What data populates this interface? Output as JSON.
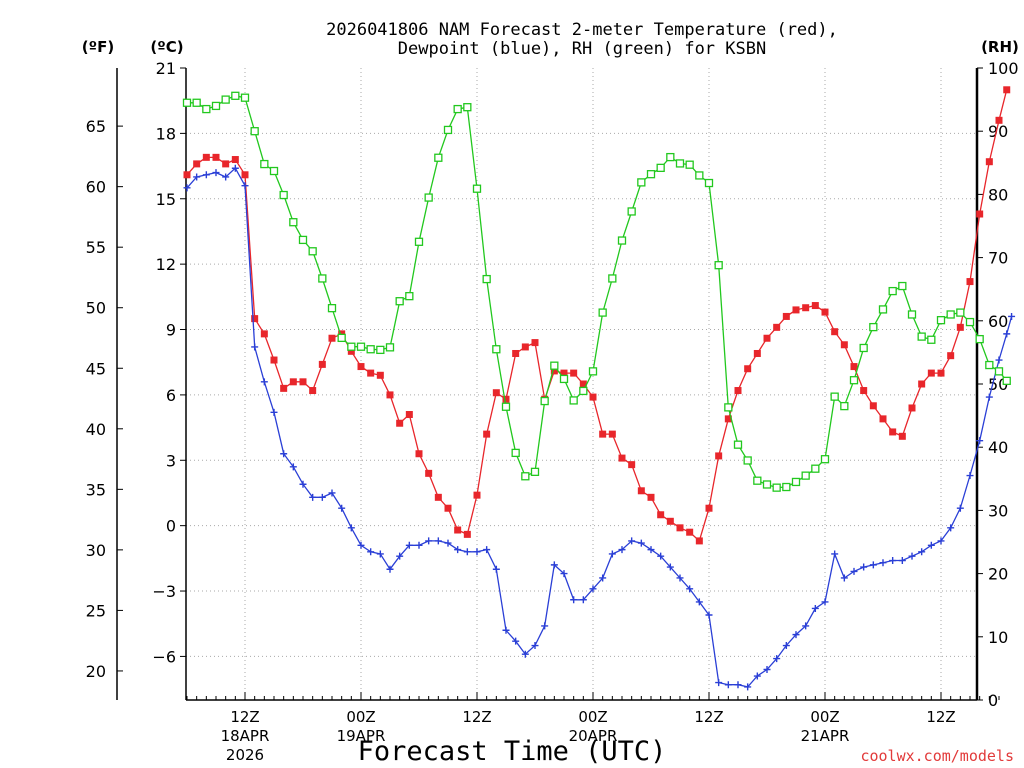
{
  "chart_data": {
    "type": "line",
    "title_line1": "2026041806 NAM Forecast 2-meter Temperature (red),",
    "title_line2": "Dewpoint (blue), RH (green) for KSBN",
    "xlabel": "Forecast Time (UTC)",
    "credit": "coolwx.com/models",
    "unit_f": "(ºF)",
    "unit_c": "(ºC)",
    "unit_rh": "(RH)",
    "ylim_c": [
      -8,
      21
    ],
    "ylim_rh": [
      0,
      100
    ],
    "grid": true,
    "x_range_hours": [
      6,
      90
    ],
    "c_ticks": [
      "21",
      "18",
      "15",
      "12",
      "9",
      "6",
      "3",
      "0",
      "−3",
      "−6"
    ],
    "c_tick_values": [
      21,
      18,
      15,
      12,
      9,
      6,
      3,
      0,
      -3,
      -6
    ],
    "f_ticks": [
      "65",
      "60",
      "55",
      "50",
      "45",
      "40",
      "35",
      "30",
      "25",
      "20"
    ],
    "f_tick_values": [
      65,
      60,
      55,
      50,
      45,
      40,
      35,
      30,
      25,
      20
    ],
    "rh_ticks": [
      "100",
      "90",
      "80",
      "70",
      "60",
      "50",
      "40",
      "30",
      "20",
      "10",
      "0"
    ],
    "rh_tick_values": [
      100,
      90,
      80,
      70,
      60,
      50,
      40,
      30,
      20,
      10,
      0
    ],
    "x_ticks": [
      {
        "hour": 12,
        "label": "12Z",
        "date": "18APR",
        "year": "2026"
      },
      {
        "hour": 24,
        "label": "00Z",
        "date": "19APR"
      },
      {
        "hour": 36,
        "label": "12Z"
      },
      {
        "hour": 48,
        "label": "00Z",
        "date": "20APR"
      },
      {
        "hour": 60,
        "label": "12Z"
      },
      {
        "hour": 72,
        "label": "00Z",
        "date": "21APR"
      },
      {
        "hour": 84,
        "label": "12Z"
      }
    ],
    "series": [
      {
        "name": "Temperature",
        "unit": "°C",
        "color": "#e8262b",
        "marker": "filled-square",
        "points": [
          [
            6,
            16.1
          ],
          [
            7,
            16.6
          ],
          [
            8,
            16.9
          ],
          [
            9,
            16.9
          ],
          [
            10,
            16.6
          ],
          [
            11,
            16.8
          ],
          [
            12,
            16.1
          ],
          [
            13,
            9.5
          ],
          [
            14,
            8.8
          ],
          [
            15,
            7.6
          ],
          [
            16,
            6.3
          ],
          [
            17,
            6.6
          ],
          [
            18,
            6.6
          ],
          [
            19,
            6.2
          ],
          [
            20,
            7.4
          ],
          [
            21,
            8.6
          ],
          [
            22,
            8.8
          ],
          [
            23,
            8.0
          ],
          [
            24,
            7.3
          ],
          [
            25,
            7.0
          ],
          [
            26,
            6.9
          ],
          [
            27,
            6.0
          ],
          [
            28,
            4.7
          ],
          [
            29,
            5.1
          ],
          [
            30,
            3.3
          ],
          [
            31,
            2.4
          ],
          [
            32,
            1.3
          ],
          [
            33,
            0.8
          ],
          [
            34,
            -0.2
          ],
          [
            35,
            -0.4
          ],
          [
            36,
            1.4
          ],
          [
            37,
            4.2
          ],
          [
            38,
            6.1
          ],
          [
            39,
            5.8
          ],
          [
            40,
            7.9
          ],
          [
            41,
            8.2
          ],
          [
            42,
            8.4
          ],
          [
            43,
            5.8
          ],
          [
            44,
            7.1
          ],
          [
            45,
            7.0
          ],
          [
            46,
            7.0
          ],
          [
            47,
            6.5
          ],
          [
            48,
            5.9
          ],
          [
            49,
            4.2
          ],
          [
            50,
            4.2
          ],
          [
            51,
            3.1
          ],
          [
            52,
            2.8
          ],
          [
            53,
            1.6
          ],
          [
            54,
            1.3
          ],
          [
            55,
            0.5
          ],
          [
            56,
            0.2
          ],
          [
            57,
            -0.1
          ],
          [
            58,
            -0.3
          ],
          [
            59,
            -0.7
          ],
          [
            60,
            0.8
          ],
          [
            61,
            3.2
          ],
          [
            62,
            4.9
          ],
          [
            63,
            6.2
          ],
          [
            64,
            7.2
          ],
          [
            65,
            7.9
          ],
          [
            66,
            8.6
          ],
          [
            67,
            9.1
          ],
          [
            68,
            9.6
          ],
          [
            69,
            9.9
          ],
          [
            70,
            10.0
          ],
          [
            71,
            10.1
          ],
          [
            72,
            9.8
          ],
          [
            73,
            8.9
          ],
          [
            74,
            8.3
          ],
          [
            75,
            7.3
          ],
          [
            76,
            6.2
          ],
          [
            77,
            5.5
          ],
          [
            78,
            4.9
          ],
          [
            79,
            4.3
          ],
          [
            80,
            4.1
          ],
          [
            81,
            5.4
          ],
          [
            82,
            6.5
          ],
          [
            83,
            7.0
          ],
          [
            84,
            7.0
          ],
          [
            85,
            7.8
          ],
          [
            86,
            9.1
          ],
          [
            87,
            11.2
          ],
          [
            88,
            14.3
          ],
          [
            89,
            16.7
          ],
          [
            90,
            18.6
          ],
          [
            90.8,
            20.0
          ]
        ]
      },
      {
        "name": "Dewpoint",
        "unit": "°C",
        "color": "#2a3fd6",
        "marker": "plus",
        "points": [
          [
            6,
            15.5
          ],
          [
            7,
            16.0
          ],
          [
            8,
            16.1
          ],
          [
            9,
            16.2
          ],
          [
            10,
            16.0
          ],
          [
            11,
            16.4
          ],
          [
            12,
            15.6
          ],
          [
            13,
            8.2
          ],
          [
            14,
            6.6
          ],
          [
            15,
            5.2
          ],
          [
            16,
            3.3
          ],
          [
            17,
            2.7
          ],
          [
            18,
            1.9
          ],
          [
            19,
            1.3
          ],
          [
            20,
            1.3
          ],
          [
            21,
            1.5
          ],
          [
            22,
            0.8
          ],
          [
            23,
            -0.1
          ],
          [
            24,
            -0.9
          ],
          [
            25,
            -1.2
          ],
          [
            26,
            -1.3
          ],
          [
            27,
            -2.0
          ],
          [
            28,
            -1.4
          ],
          [
            29,
            -0.9
          ],
          [
            30,
            -0.9
          ],
          [
            31,
            -0.7
          ],
          [
            32,
            -0.7
          ],
          [
            33,
            -0.8
          ],
          [
            34,
            -1.1
          ],
          [
            35,
            -1.2
          ],
          [
            36,
            -1.2
          ],
          [
            37,
            -1.1
          ],
          [
            38,
            -2.0
          ],
          [
            39,
            -4.8
          ],
          [
            40,
            -5.3
          ],
          [
            41,
            -5.9
          ],
          [
            42,
            -5.5
          ],
          [
            43,
            -4.6
          ],
          [
            44,
            -1.8
          ],
          [
            45,
            -2.2
          ],
          [
            46,
            -3.4
          ],
          [
            47,
            -3.4
          ],
          [
            48,
            -2.9
          ],
          [
            49,
            -2.4
          ],
          [
            50,
            -1.3
          ],
          [
            51,
            -1.1
          ],
          [
            52,
            -0.7
          ],
          [
            53,
            -0.8
          ],
          [
            54,
            -1.1
          ],
          [
            55,
            -1.4
          ],
          [
            56,
            -1.9
          ],
          [
            57,
            -2.4
          ],
          [
            58,
            -2.9
          ],
          [
            59,
            -3.5
          ],
          [
            60,
            -4.1
          ],
          [
            61,
            -7.2
          ],
          [
            62,
            -7.3
          ],
          [
            63,
            -7.3
          ],
          [
            64,
            -7.4
          ],
          [
            65,
            -6.9
          ],
          [
            66,
            -6.6
          ],
          [
            67,
            -6.1
          ],
          [
            68,
            -5.5
          ],
          [
            69,
            -5.0
          ],
          [
            70,
            -4.6
          ],
          [
            71,
            -3.8
          ],
          [
            72,
            -3.5
          ],
          [
            73,
            -1.3
          ],
          [
            74,
            -2.4
          ],
          [
            75,
            -2.1
          ],
          [
            76,
            -1.9
          ],
          [
            77,
            -1.8
          ],
          [
            78,
            -1.7
          ],
          [
            79,
            -1.6
          ],
          [
            80,
            -1.6
          ],
          [
            81,
            -1.4
          ],
          [
            82,
            -1.2
          ],
          [
            83,
            -0.9
          ],
          [
            84,
            -0.7
          ],
          [
            85,
            -0.1
          ],
          [
            86,
            0.8
          ],
          [
            87,
            2.3
          ],
          [
            88,
            3.9
          ],
          [
            89,
            5.9
          ],
          [
            90,
            7.6
          ],
          [
            90.8,
            8.8
          ],
          [
            91.3,
            9.6
          ]
        ]
      },
      {
        "name": "RH",
        "unit": "%",
        "color": "#22c81e",
        "marker": "open-square",
        "points": [
          [
            6,
            94.5
          ],
          [
            7,
            94.5
          ],
          [
            8,
            93.5
          ],
          [
            9,
            94.0
          ],
          [
            10,
            95.0
          ],
          [
            11,
            95.6
          ],
          [
            12,
            95.3
          ],
          [
            13,
            90.0
          ],
          [
            14,
            84.8
          ],
          [
            15,
            83.7
          ],
          [
            16,
            79.9
          ],
          [
            17,
            75.6
          ],
          [
            18,
            72.8
          ],
          [
            19,
            71.0
          ],
          [
            20,
            66.7
          ],
          [
            21,
            62.0
          ],
          [
            22,
            57.3
          ],
          [
            23,
            55.9
          ],
          [
            24,
            55.9
          ],
          [
            25,
            55.5
          ],
          [
            26,
            55.4
          ],
          [
            27,
            55.8
          ],
          [
            28,
            63.1
          ],
          [
            29,
            63.9
          ],
          [
            30,
            72.5
          ],
          [
            31,
            79.5
          ],
          [
            32,
            85.8
          ],
          [
            33,
            90.2
          ],
          [
            34,
            93.5
          ],
          [
            35,
            93.8
          ],
          [
            36,
            80.9
          ],
          [
            37,
            66.6
          ],
          [
            38,
            55.5
          ],
          [
            39,
            46.4
          ],
          [
            40,
            39.1
          ],
          [
            41,
            35.4
          ],
          [
            42,
            36.1
          ],
          [
            43,
            47.3
          ],
          [
            44,
            52.9
          ],
          [
            45,
            50.8
          ],
          [
            46,
            47.4
          ],
          [
            47,
            48.9
          ],
          [
            48,
            52.0
          ],
          [
            49,
            61.3
          ],
          [
            50,
            66.7
          ],
          [
            51,
            72.7
          ],
          [
            52,
            77.3
          ],
          [
            53,
            81.9
          ],
          [
            54,
            83.2
          ],
          [
            55,
            84.2
          ],
          [
            56,
            85.9
          ],
          [
            57,
            84.9
          ],
          [
            58,
            84.7
          ],
          [
            59,
            83.0
          ],
          [
            60,
            81.8
          ],
          [
            61,
            68.8
          ],
          [
            62,
            46.3
          ],
          [
            63,
            40.4
          ],
          [
            64,
            37.9
          ],
          [
            65,
            34.7
          ],
          [
            66,
            34.1
          ],
          [
            67,
            33.6
          ],
          [
            68,
            33.7
          ],
          [
            69,
            34.5
          ],
          [
            70,
            35.5
          ],
          [
            71,
            36.6
          ],
          [
            72,
            38.1
          ],
          [
            73,
            48.0
          ],
          [
            74,
            46.5
          ],
          [
            75,
            50.6
          ],
          [
            76,
            55.7
          ],
          [
            77,
            59.0
          ],
          [
            78,
            61.8
          ],
          [
            79,
            64.7
          ],
          [
            80,
            65.5
          ],
          [
            81,
            61.0
          ],
          [
            82,
            57.5
          ],
          [
            83,
            57.0
          ],
          [
            84,
            60.1
          ],
          [
            85,
            61.0
          ],
          [
            86,
            61.3
          ],
          [
            87,
            59.8
          ],
          [
            88,
            57.1
          ],
          [
            89,
            53.0
          ],
          [
            90,
            52.0
          ],
          [
            90.8,
            50.5
          ]
        ]
      }
    ]
  }
}
